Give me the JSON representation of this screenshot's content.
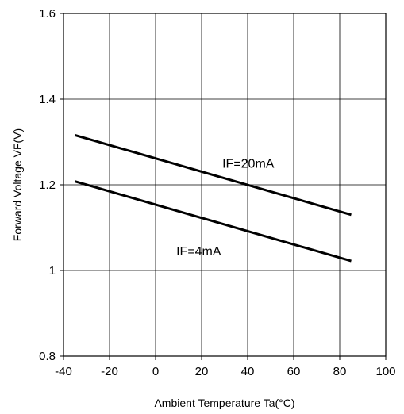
{
  "chart_data": {
    "type": "line",
    "title": "",
    "xlabel": "Ambient Temperature Ta(°C)",
    "ylabel": "Forward Voltage VF(V)",
    "xlim": [
      -40,
      100
    ],
    "ylim": [
      0.8,
      1.6
    ],
    "xticks": [
      -40,
      -20,
      0,
      20,
      40,
      60,
      80,
      100
    ],
    "xtick_labels": [
      "-40",
      "-20",
      "0",
      "20",
      "40",
      "60",
      "80",
      "100"
    ],
    "yticks": [
      0.8,
      1.0,
      1.2,
      1.4,
      1.6
    ],
    "ytick_labels": [
      "0.8",
      "1",
      "1.2",
      "1.4",
      "1.6"
    ],
    "grid": true,
    "legend": "none",
    "series": [
      {
        "name": "IF=20mA",
        "x": [
          -35,
          85
        ],
        "y": [
          1.316,
          1.13
        ],
        "color": "#000000"
      },
      {
        "name": "IF=4mA",
        "x": [
          -35,
          85
        ],
        "y": [
          1.208,
          1.022
        ],
        "color": "#000000"
      }
    ],
    "annotations": [
      {
        "text": "IF=20mA",
        "x": 29,
        "y": 1.24
      },
      {
        "text": "IF=4mA",
        "x": 9,
        "y": 1.035
      }
    ]
  }
}
